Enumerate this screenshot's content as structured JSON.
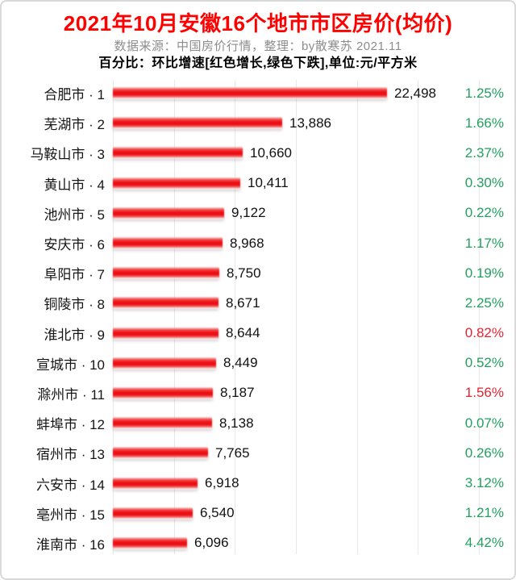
{
  "header": {
    "title": "2021年10月安徽16个地市市区房价(均价)",
    "source_line": "数据来源：中国房价行情，整理：by散寒苏 2021.11",
    "note_line": "百分比：环比增速[红色增长,绿色下跌],单位:元/平方米"
  },
  "chart_data": {
    "type": "bar",
    "orientation": "horizontal",
    "title": "2021年10月安徽16个地市市区房价(均价)",
    "unit": "元/平方米",
    "xlim": [
      0,
      30000
    ],
    "gridline_step": 5000,
    "grid": true,
    "legend": "none",
    "categories": [
      "合肥市",
      "芜湖市",
      "马鞍山市",
      "黄山市",
      "池州市",
      "安庆市",
      "阜阳市",
      "铜陵市",
      "淮北市",
      "宣城市",
      "滁州市",
      "蚌埠市",
      "宿州市",
      "六安市",
      "亳州市",
      "淮南市"
    ],
    "ranks": [
      1,
      2,
      3,
      4,
      5,
      6,
      7,
      8,
      9,
      10,
      11,
      12,
      13,
      14,
      15,
      16
    ],
    "row_labels": [
      "合肥市 · 1",
      "芜湖市 · 2",
      "马鞍山市 · 3",
      "黄山市 · 4",
      "池州市 · 5",
      "安庆市 · 6",
      "阜阳市 · 7",
      "铜陵市 · 8",
      "淮北市 · 9",
      "宣城市 · 10",
      "滁州市 · 11",
      "蚌埠市 · 12",
      "宿州市 · 13",
      "六安市 · 14",
      "亳州市 · 15",
      "淮南市 · 16"
    ],
    "values": [
      22498,
      13886,
      10660,
      10411,
      9122,
      8968,
      8750,
      8671,
      8644,
      8449,
      8187,
      8138,
      7765,
      6918,
      6540,
      6096
    ],
    "value_labels": [
      "22,498",
      "13,886",
      "10,660",
      "10,411",
      "9,122",
      "8,968",
      "8,750",
      "8,671",
      "8,644",
      "8,449",
      "8,187",
      "8,138",
      "7,765",
      "6,918",
      "6,540",
      "6,096"
    ],
    "pct_labels": [
      "1.25%",
      "1.66%",
      "2.37%",
      "0.30%",
      "0.22%",
      "1.17%",
      "0.19%",
      "2.25%",
      "0.82%",
      "0.52%",
      "1.56%",
      "0.07%",
      "0.26%",
      "3.12%",
      "1.21%",
      "4.42%"
    ],
    "pct_trend": [
      "down",
      "down",
      "down",
      "down",
      "down",
      "down",
      "down",
      "down",
      "up",
      "down",
      "up",
      "down",
      "down",
      "down",
      "down",
      "down"
    ],
    "colors": {
      "bar": "#ee1c24",
      "pct_up": "#e02533",
      "pct_down": "#22a060",
      "title": "#ff0000",
      "grid": "#e8e8e8",
      "source_text": "#8c8c8c"
    }
  }
}
